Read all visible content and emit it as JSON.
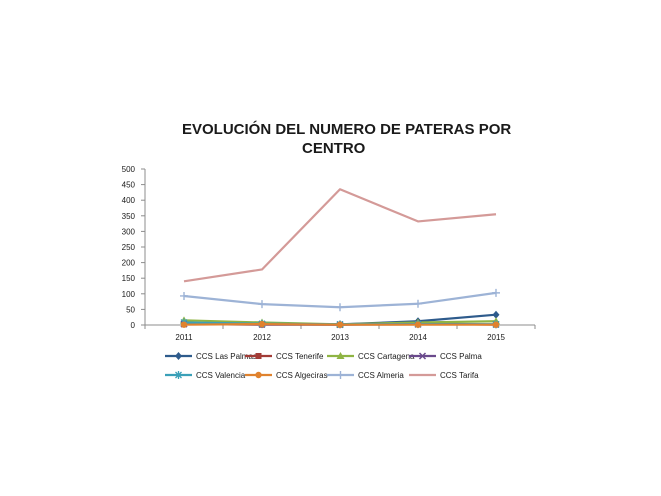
{
  "chart_data": {
    "type": "line",
    "title_lines": [
      "EVOLUCIÓN DEL NUMERO DE PATERAS POR",
      "CENTRO"
    ],
    "xlabel": "",
    "ylabel": "",
    "categories": [
      "2011",
      "2012",
      "2013",
      "2014",
      "2015"
    ],
    "ylim": [
      0,
      500
    ],
    "yticks": [
      "0",
      "50",
      "100",
      "150",
      "200",
      "250",
      "300",
      "350",
      "400",
      "450",
      "500"
    ],
    "grid": false,
    "legend_position": "bottom",
    "series": [
      {
        "name": "CCS Las Palmas",
        "color": "#2e5b8c",
        "marker": "diamond",
        "values": [
          5,
          2,
          2,
          12,
          33
        ]
      },
      {
        "name": "CCS Tenerife",
        "color": "#a23b36",
        "marker": "square",
        "values": [
          3,
          1,
          1,
          4,
          1
        ]
      },
      {
        "name": "CCS Cartagena",
        "color": "#8fb443",
        "marker": "triangle",
        "values": [
          15,
          8,
          2,
          8,
          12
        ]
      },
      {
        "name": "CCS Palma",
        "color": "#6a4a8c",
        "marker": "x",
        "values": [
          3,
          2,
          1,
          2,
          2
        ]
      },
      {
        "name": "CCS Valencia",
        "color": "#3aa0b8",
        "marker": "star",
        "values": [
          8,
          4,
          2,
          3,
          2
        ]
      },
      {
        "name": "CCS Algeciras",
        "color": "#e0822e",
        "marker": "circle",
        "values": [
          1,
          3,
          1,
          1,
          1
        ]
      },
      {
        "name": "CCS Almeria",
        "color": "#9db3d6",
        "marker": "plus",
        "values": [
          93,
          67,
          57,
          68,
          103
        ]
      },
      {
        "name": "CCS Tarifa",
        "color": "#d49a98",
        "marker": "none",
        "values": [
          140,
          178,
          435,
          332,
          355
        ]
      }
    ]
  }
}
